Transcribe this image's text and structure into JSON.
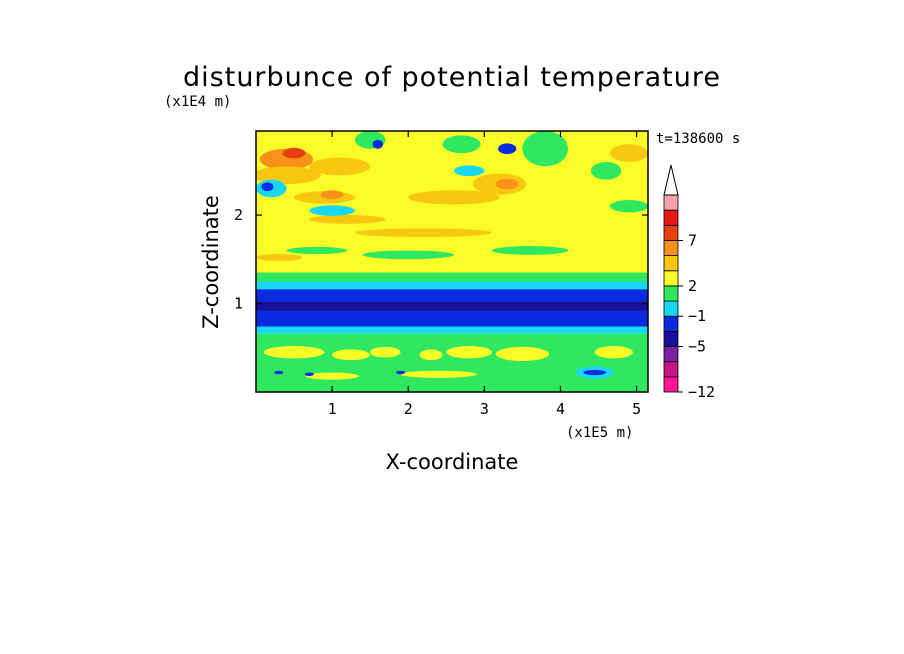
{
  "chart_data": {
    "type": "heatmap",
    "title": "disturbunce of potential temperature",
    "xlabel": "X-coordinate",
    "ylabel": "Z-coordinate",
    "x_unit": "(x1E5 m)",
    "y_unit": "(x1E4 m)",
    "time_label": "t=138600 s",
    "xlim": [
      0,
      5.15
    ],
    "ylim": [
      0,
      2.95
    ],
    "x_ticks": [
      "1",
      "2",
      "3",
      "4",
      "5"
    ],
    "x_tick_values": [
      1,
      2,
      3,
      4,
      5
    ],
    "y_ticks": [
      "1",
      "2"
    ],
    "y_tick_values": [
      1,
      2
    ],
    "colorbar": {
      "labels": [
        "7",
        "2",
        "−1",
        "−5",
        "−12"
      ],
      "label_values": [
        7,
        2,
        -1,
        -5,
        -12
      ],
      "colors": [
        "#ff1493",
        "#c71585",
        "#7b1fa2",
        "#1a0f99",
        "#0a2be0",
        "#17d8f0",
        "#30e860",
        "#fbfb28",
        "#f8c810",
        "#f8901a",
        "#e84010",
        "#e81818",
        "#f4a0a8"
      ]
    },
    "fields_description": "Horizontal layers: warm/yellow-orange anomalies aloft (z>1.3), strong cold (dark blue) layer near z~1, yellow lenses near z~0.4, green near surface; disturbed region near x~4-4.6."
  }
}
